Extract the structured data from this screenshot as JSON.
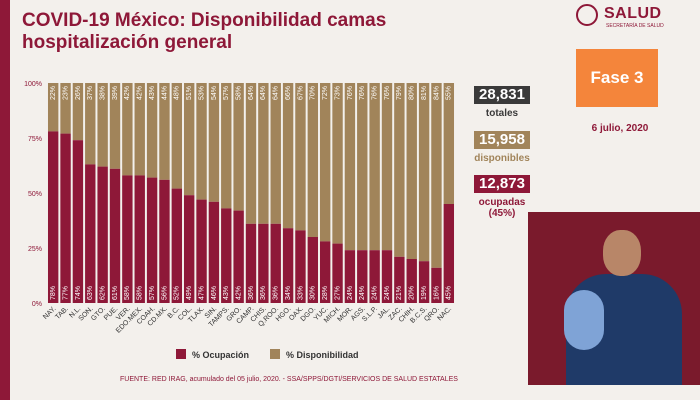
{
  "title": "COVID-19 México: Disponibilidad camas hospitalización general",
  "logo": {
    "name": "SALUD",
    "subtitle": "SECRETARÍA DE SALUD"
  },
  "stats": {
    "total_value": "28,831",
    "total_label": "totales",
    "disponibles_value": "15,958",
    "disponibles_label": "disponibles",
    "ocupadas_value": "12,873",
    "ocupadas_label": "ocupadas",
    "ocupadas_pct": "(45%)"
  },
  "phase": "Fase 3",
  "date": "6 julio, 2020",
  "source": "FUENTE: RED IRAG, acumulado del 05 julio, 2020.  -  SSA/SPPS/DGTI/SERVICIOS DE SALUD ESTATALES",
  "colors": {
    "ocupacion": "#8e1838",
    "disponibilidad": "#a1845a",
    "accent": "#8e1838",
    "phase": "#f4853b",
    "total_box": "#3a3a3a"
  },
  "chart_data": {
    "type": "bar",
    "stacked": true,
    "categories": [
      "NAY.",
      "TAB.",
      "N.L.",
      "SON.",
      "GTO.",
      "PUE.",
      "VER.",
      "EDO.MEX.",
      "COAH.",
      "CD.MX.",
      "B.C.",
      "COL.",
      "TLAX.",
      "SIN.",
      "TAMPS.",
      "GRO.",
      "CAMP.",
      "CHIS.",
      "Q.ROO.",
      "HGO.",
      "OAX.",
      "DGO.",
      "YUC.",
      "MICH.",
      "MOR.",
      "AGS.",
      "S.L.P.",
      "JAL.",
      "ZAC.",
      "CHIH.",
      "B.C.S.",
      "QRO.",
      "NAC."
    ],
    "series": [
      {
        "name": "% Ocupación",
        "values": [
          78,
          77,
          74,
          63,
          62,
          61,
          58,
          58,
          57,
          56,
          52,
          49,
          47,
          46,
          43,
          42,
          36,
          36,
          36,
          34,
          33,
          30,
          28,
          27,
          24,
          24,
          24,
          24,
          21,
          20,
          19,
          16,
          45
        ],
        "color": "#8e1838"
      },
      {
        "name": "% Disponibilidad",
        "values": [
          22,
          23,
          26,
          37,
          38,
          39,
          42,
          42,
          43,
          44,
          48,
          51,
          53,
          54,
          57,
          58,
          64,
          64,
          64,
          66,
          67,
          70,
          72,
          73,
          76,
          76,
          76,
          76,
          79,
          80,
          81,
          84,
          55
        ],
        "color": "#a1845a"
      }
    ],
    "y_ticks": [
      "0%",
      "25%",
      "50%",
      "75%",
      "100%"
    ],
    "ylim": [
      0,
      100
    ],
    "legend": [
      "% Ocupación",
      "% Disponibilidad"
    ],
    "legend_position": "bottom"
  }
}
